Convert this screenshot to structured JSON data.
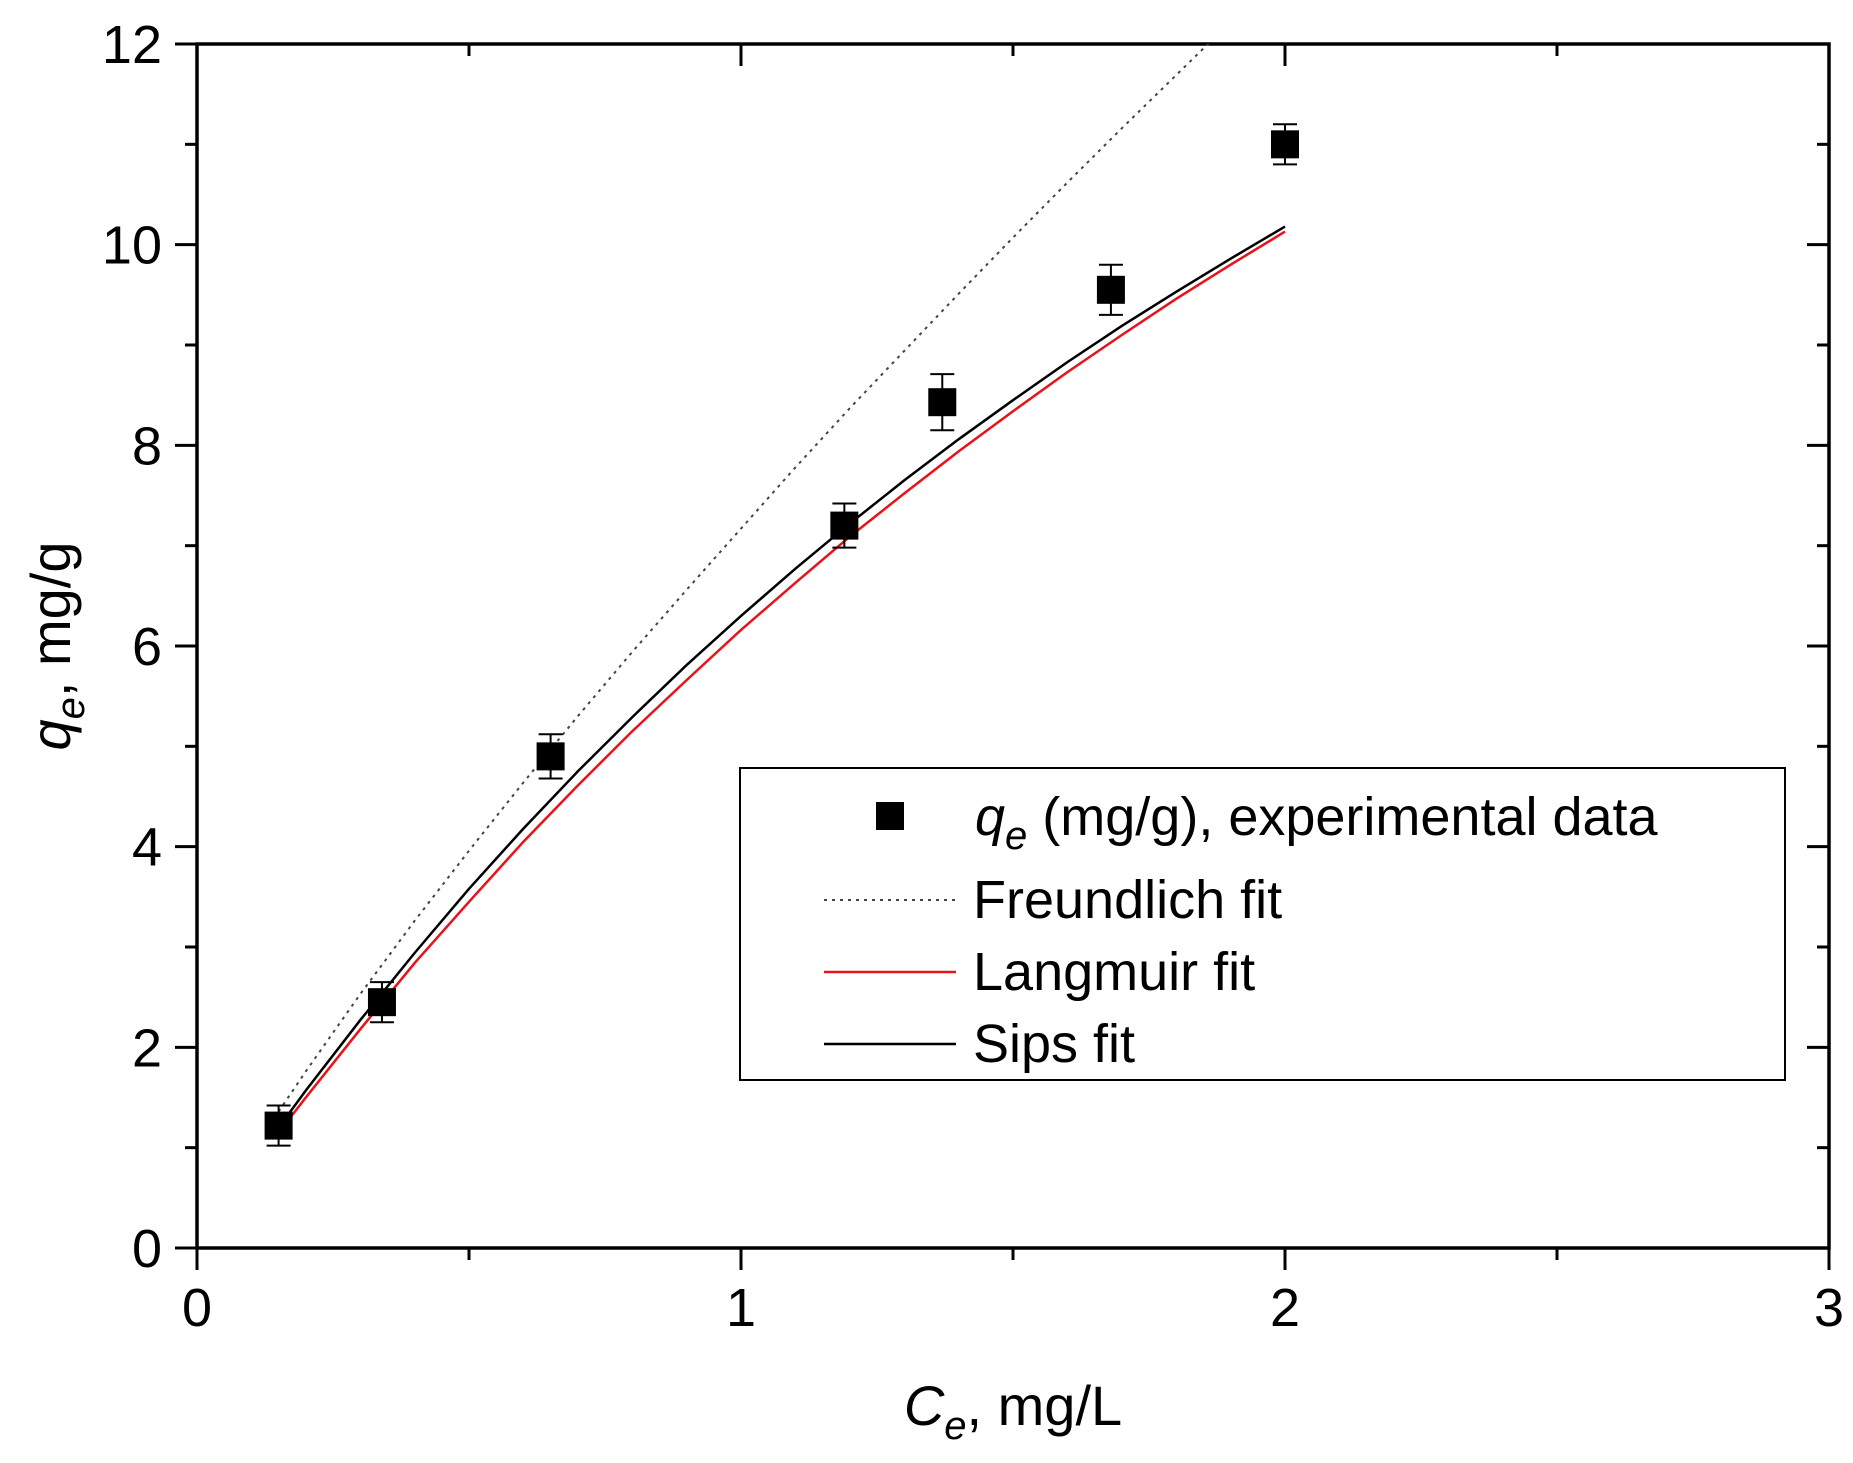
{
  "chart_data": {
    "type": "scatter",
    "xlabel": {
      "main": "C",
      "sub": "e",
      "unit": ", mg/L"
    },
    "ylabel": {
      "main": "q",
      "sub": "e",
      "unit": ", mg/g"
    },
    "xlim": [
      0,
      3
    ],
    "ylim": [
      0,
      12
    ],
    "x_ticks": [
      "0",
      "1",
      "2",
      "3"
    ],
    "y_ticks": [
      "0",
      "2",
      "4",
      "6",
      "8",
      "10",
      "12"
    ],
    "grid": false,
    "legend_position": "lower-right",
    "experimental": {
      "legend": {
        "main": "q",
        "sub": "e",
        "rest": " (mg/g), experimental data"
      },
      "x": [
        0.15,
        0.34,
        0.65,
        1.19,
        1.37,
        1.68,
        2.0
      ],
      "y": [
        1.22,
        2.45,
        4.9,
        7.2,
        8.43,
        9.55,
        11.0
      ],
      "error": [
        0.2,
        0.2,
        0.22,
        0.22,
        0.28,
        0.25,
        0.2
      ]
    },
    "series": [
      {
        "name": "Freundlich fit",
        "color": "#444444",
        "style": "dotted",
        "x": [
          0.15,
          0.2,
          0.3,
          0.4,
          0.5,
          0.6,
          0.7,
          0.8,
          0.9,
          1.0,
          1.1,
          1.2,
          1.3,
          1.4,
          1.5,
          1.6,
          1.7,
          1.8,
          1.9,
          2.0
        ],
        "y": [
          1.36,
          1.76,
          2.53,
          3.26,
          3.96,
          4.64,
          5.3,
          5.94,
          6.56,
          7.17,
          7.78,
          8.37,
          8.94,
          9.51,
          10.07,
          10.62,
          11.16,
          11.69,
          12.22,
          12.74
        ]
      },
      {
        "name": "Langmuir fit",
        "color": "#e8121a",
        "style": "solid",
        "x": [
          0.15,
          0.2,
          0.3,
          0.4,
          0.5,
          0.6,
          0.7,
          0.8,
          0.9,
          1.0,
          1.1,
          1.2,
          1.3,
          1.4,
          1.5,
          1.6,
          1.7,
          1.8,
          1.9,
          2.0
        ],
        "y": [
          1.15,
          1.5,
          2.18,
          2.84,
          3.45,
          4.05,
          4.61,
          5.15,
          5.66,
          6.16,
          6.63,
          7.09,
          7.52,
          7.94,
          8.34,
          8.73,
          9.1,
          9.46,
          9.8,
          10.13
        ]
      },
      {
        "name": "Sips fit",
        "color": "#000000",
        "style": "solid",
        "x": [
          0.15,
          0.2,
          0.3,
          0.4,
          0.5,
          0.6,
          0.7,
          0.8,
          0.9,
          1.0,
          1.1,
          1.2,
          1.3,
          1.4,
          1.5,
          1.6,
          1.7,
          1.8,
          1.9,
          2.0
        ],
        "y": [
          1.2,
          1.57,
          2.27,
          2.94,
          3.58,
          4.18,
          4.75,
          5.29,
          5.81,
          6.3,
          6.77,
          7.22,
          7.65,
          8.06,
          8.45,
          8.83,
          9.19,
          9.53,
          9.86,
          10.18
        ]
      }
    ]
  }
}
